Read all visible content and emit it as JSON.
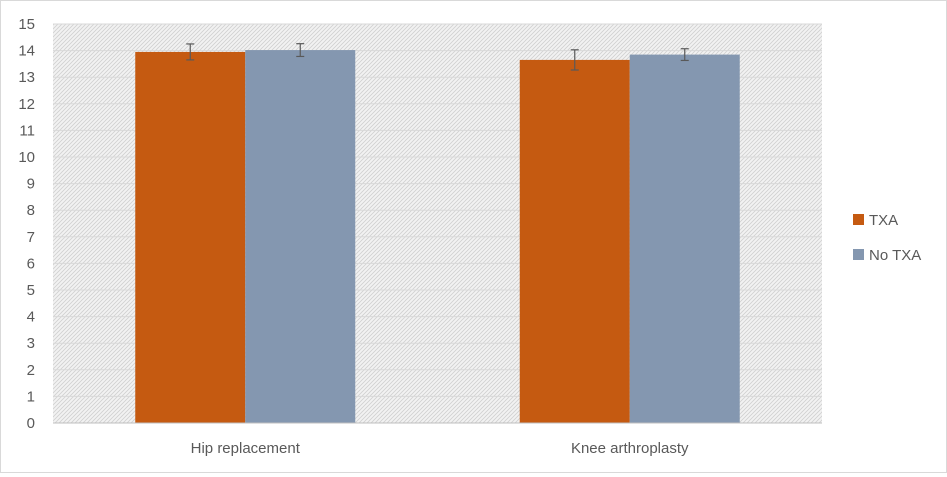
{
  "chart_data": {
    "type": "bar",
    "title": "",
    "xlabel": "",
    "ylabel": "",
    "categories": [
      "Hip replacement",
      "Knee arthroplasty"
    ],
    "series": [
      {
        "name": "TXA",
        "values": [
          13.95,
          13.65
        ],
        "errors": [
          0.3,
          0.38
        ],
        "color": "#c55a11"
      },
      {
        "name": "No TXA",
        "values": [
          14.02,
          13.85
        ],
        "errors": [
          0.24,
          0.22
        ],
        "color": "#8497b0"
      }
    ],
    "ylim": [
      0,
      15
    ],
    "yticks": [
      "0",
      "1",
      "2",
      "3",
      "4",
      "5",
      "6",
      "7",
      "8",
      "9",
      "10",
      "11",
      "12",
      "13",
      "14",
      "15"
    ],
    "grid": true,
    "legend_position": "right",
    "plot_background": "hatched-light-gray"
  }
}
